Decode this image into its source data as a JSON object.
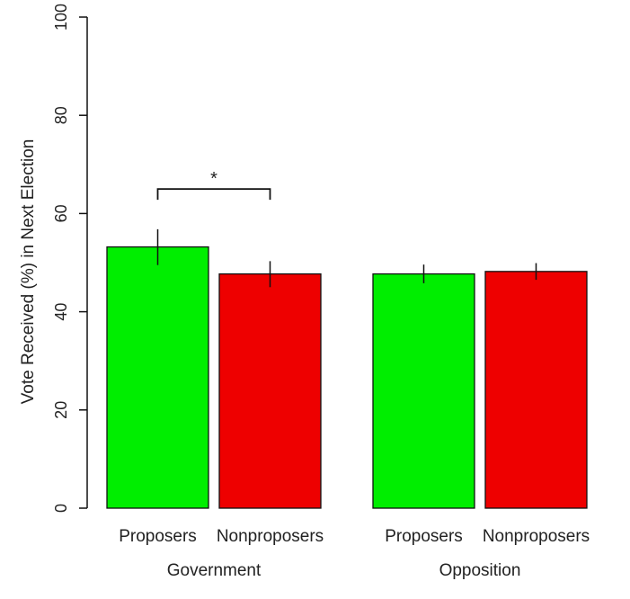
{
  "chart_data": {
    "type": "bar",
    "title": "",
    "xlabel": "",
    "ylabel": "Vote Received (%) in Next Election",
    "ylim": [
      0,
      100
    ],
    "yticks": [
      0,
      20,
      40,
      60,
      80,
      100
    ],
    "groups": [
      {
        "label": "Government",
        "bars": [
          {
            "label": "Proposers",
            "value": 53.2,
            "err_low": 49.5,
            "err_high": 56.8,
            "color": "#00ee00"
          },
          {
            "label": "Nonproposers",
            "value": 47.7,
            "err_low": 45.0,
            "err_high": 50.3,
            "color": "#ee0000"
          }
        ]
      },
      {
        "label": "Opposition",
        "bars": [
          {
            "label": "Proposers",
            "value": 47.7,
            "err_low": 45.8,
            "err_high": 49.6,
            "color": "#00ee00"
          },
          {
            "label": "Nonproposers",
            "value": 48.2,
            "err_low": 46.5,
            "err_high": 49.9,
            "color": "#ee0000"
          }
        ]
      }
    ],
    "annotations": [
      {
        "text": "*",
        "group": 0,
        "value": 65
      }
    ],
    "grid": false,
    "legend": "none"
  }
}
